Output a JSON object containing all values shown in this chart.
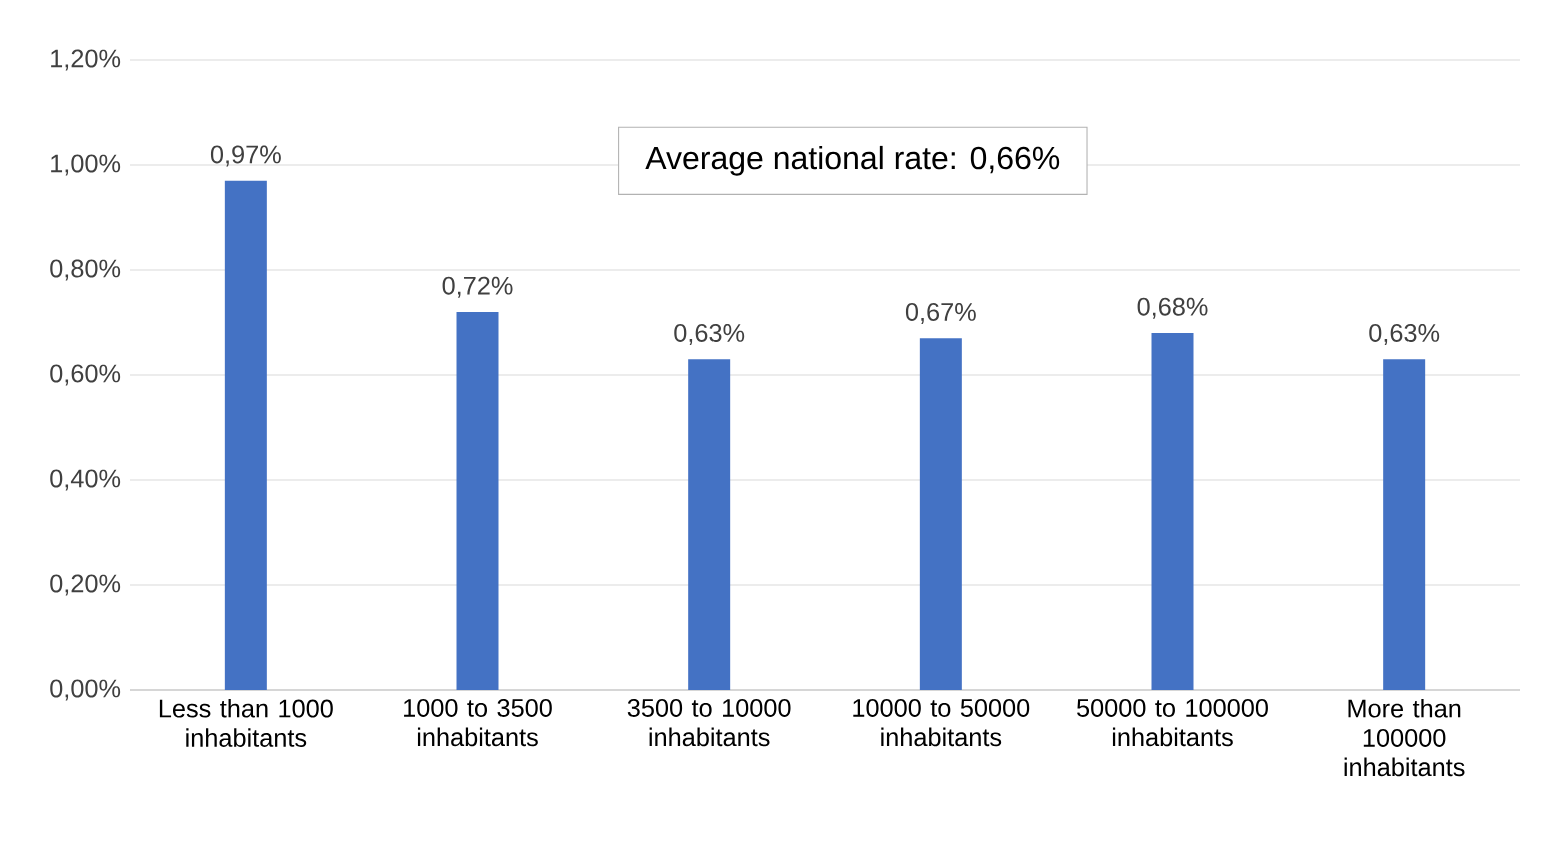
{
  "chart_data": {
    "type": "bar",
    "categories": [
      "Less than 1000 inhabitants",
      "1000 to 3500 inhabitants",
      "3500 to 10000 inhabitants",
      "10000 to 50000 inhabitants",
      "50000 to 100000 inhabitants",
      "More than 100000 inhabitants"
    ],
    "values": [
      0.97,
      0.72,
      0.63,
      0.67,
      0.68,
      0.63
    ],
    "value_labels": [
      "0,97%",
      "0,72%",
      "0,63%",
      "0,67%",
      "0,68%",
      "0,63%"
    ],
    "color": "#4472c4",
    "ylim": [
      0,
      1.2
    ],
    "yticks": [
      {
        "value": 0,
        "label": "0,00%"
      },
      {
        "value": 0.2,
        "label": "0,20%"
      },
      {
        "value": 0.4,
        "label": "0,40%"
      },
      {
        "value": 0.6,
        "label": "0,60%"
      },
      {
        "value": 0.8,
        "label": "0,80%"
      },
      {
        "value": 1.0,
        "label": "1,00%"
      },
      {
        "value": 1.2,
        "label": "1,20%"
      }
    ],
    "grid": "y",
    "annotations": [
      "Average national rate: 0,66%"
    ]
  }
}
